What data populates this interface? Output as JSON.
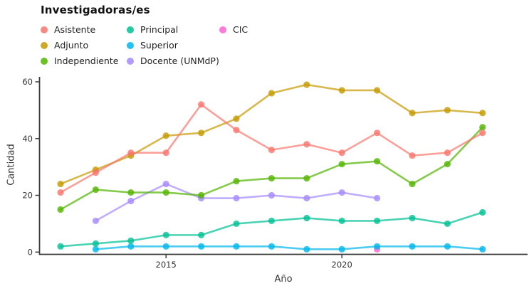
{
  "title": "Investigadoras/es",
  "legend": {
    "columns": [
      [
        "Asistente",
        "Adjunto",
        "Independiente"
      ],
      [
        "Principal",
        "Superior",
        "Docente (UNMdP)"
      ],
      [
        "CIC"
      ]
    ]
  },
  "axis_text_color": "#333333",
  "axis_line_color": "#3c3c3c",
  "chart_data": {
    "type": "line",
    "title": "Investigadoras/es",
    "xlabel": "Año",
    "ylabel": "Cantidad",
    "xlim": [
      2011.5,
      2024.5
    ],
    "ylim": [
      0,
      60
    ],
    "x_ticks": [
      2015,
      2020
    ],
    "y_ticks": [
      0,
      20,
      40,
      60
    ],
    "grid": false,
    "legend_position": "top-left",
    "series": [
      {
        "name": "Asistente",
        "color": "#F8766D",
        "points": [
          [
            2012,
            21
          ],
          [
            2013,
            28
          ],
          [
            2014,
            35
          ],
          [
            2015,
            35
          ],
          [
            2016,
            52
          ],
          [
            2017,
            43
          ],
          [
            2018,
            36
          ],
          [
            2019,
            38
          ],
          [
            2020,
            35
          ],
          [
            2021,
            42
          ],
          [
            2022,
            34
          ],
          [
            2023,
            35
          ],
          [
            2024,
            42
          ]
        ]
      },
      {
        "name": "Adjunto",
        "color": "#C49A00",
        "points": [
          [
            2012,
            24
          ],
          [
            2013,
            29
          ],
          [
            2014,
            34
          ],
          [
            2015,
            41
          ],
          [
            2016,
            42
          ],
          [
            2017,
            47
          ],
          [
            2018,
            56
          ],
          [
            2019,
            59
          ],
          [
            2020,
            57
          ],
          [
            2021,
            57
          ],
          [
            2022,
            49
          ],
          [
            2023,
            50
          ],
          [
            2024,
            49
          ]
        ]
      },
      {
        "name": "Independiente",
        "color": "#53B400",
        "points": [
          [
            2012,
            15
          ],
          [
            2013,
            22
          ],
          [
            2014,
            21
          ],
          [
            2015,
            21
          ],
          [
            2016,
            20
          ],
          [
            2017,
            25
          ],
          [
            2018,
            26
          ],
          [
            2019,
            26
          ],
          [
            2020,
            31
          ],
          [
            2021,
            32
          ],
          [
            2022,
            24
          ],
          [
            2023,
            31
          ],
          [
            2024,
            44
          ]
        ]
      },
      {
        "name": "Principal",
        "color": "#00C094",
        "points": [
          [
            2012,
            2
          ],
          [
            2013,
            3
          ],
          [
            2014,
            4
          ],
          [
            2015,
            6
          ],
          [
            2016,
            6
          ],
          [
            2017,
            10
          ],
          [
            2018,
            11
          ],
          [
            2019,
            12
          ],
          [
            2020,
            11
          ],
          [
            2021,
            11
          ],
          [
            2022,
            12
          ],
          [
            2023,
            10
          ],
          [
            2024,
            14
          ]
        ]
      },
      {
        "name": "Superior",
        "color": "#00B6EB",
        "points": [
          [
            2013,
            1
          ],
          [
            2014,
            2
          ],
          [
            2015,
            2
          ],
          [
            2016,
            2
          ],
          [
            2017,
            2
          ],
          [
            2018,
            2
          ],
          [
            2019,
            1
          ],
          [
            2020,
            1
          ],
          [
            2021,
            2
          ],
          [
            2022,
            2
          ],
          [
            2023,
            2
          ],
          [
            2024,
            1
          ]
        ]
      },
      {
        "name": "Docente (UNMdP)",
        "color": "#A58AFF",
        "points": [
          [
            2013,
            11
          ],
          [
            2014,
            18
          ],
          [
            2015,
            24
          ],
          [
            2016,
            19
          ],
          [
            2017,
            19
          ],
          [
            2018,
            20
          ],
          [
            2019,
            19
          ],
          [
            2020,
            21
          ],
          [
            2021,
            19
          ]
        ]
      },
      {
        "name": "CIC",
        "color": "#FB61D7",
        "points": [
          [
            2021,
            1
          ]
        ]
      }
    ]
  }
}
